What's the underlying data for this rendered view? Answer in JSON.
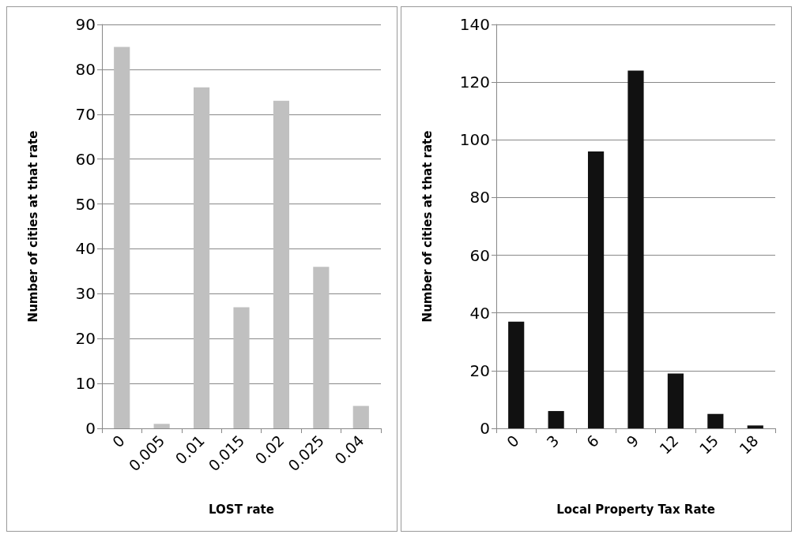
{
  "chart_data": [
    {
      "type": "bar",
      "xlabel": "LOST rate",
      "ylabel": "Number of cities at that rate",
      "categories": [
        "0",
        "0.005",
        "0.01",
        "0.015",
        "0.02",
        "0.025",
        "0.04"
      ],
      "values": [
        85,
        1,
        76,
        27,
        73,
        36,
        5
      ],
      "color": "#c0c0c0",
      "ylim": [
        0,
        90
      ],
      "yticks": [
        0,
        10,
        20,
        30,
        40,
        50,
        60,
        70,
        80,
        90
      ],
      "grid": "y"
    },
    {
      "type": "bar",
      "xlabel": "Local Property Tax Rate",
      "ylabel": "Number of cities at that rate",
      "categories": [
        "0",
        "3",
        "6",
        "9",
        "12",
        "15",
        "18"
      ],
      "values": [
        37,
        6,
        96,
        124,
        19,
        5,
        1
      ],
      "color": "#111111",
      "ylim": [
        0,
        140
      ],
      "yticks": [
        0,
        20,
        40,
        60,
        80,
        100,
        120,
        140
      ],
      "grid": "y"
    }
  ]
}
